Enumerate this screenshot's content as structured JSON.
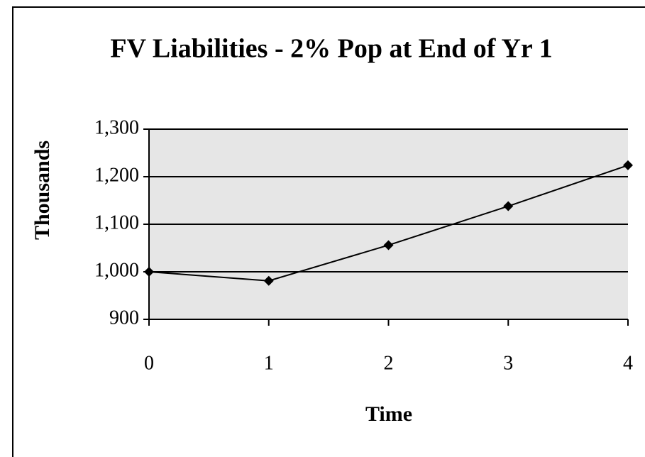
{
  "chart_data": {
    "type": "line",
    "title": "FV Liabilities - 2% Pop at End of Yr 1",
    "x_label": "Time",
    "y_label": "Thousands",
    "x": [
      0,
      1,
      2,
      3,
      4
    ],
    "series": [
      {
        "name": "FV Liabilities",
        "color": "#000000",
        "values": [
          1000,
          981,
          1056,
          1138,
          1224
        ]
      }
    ],
    "xlim": [
      0,
      4
    ],
    "xticks": [
      0,
      1,
      2,
      3,
      4
    ],
    "ylim": [
      900,
      1300
    ],
    "yticks": [
      900,
      {
        "value": 1000,
        "label": "1,000"
      },
      {
        "value": 1100,
        "label": "1,100"
      },
      {
        "value": 1200,
        "label": "1,200"
      },
      {
        "value": 1300,
        "label": "1,300"
      }
    ],
    "grid": true
  }
}
